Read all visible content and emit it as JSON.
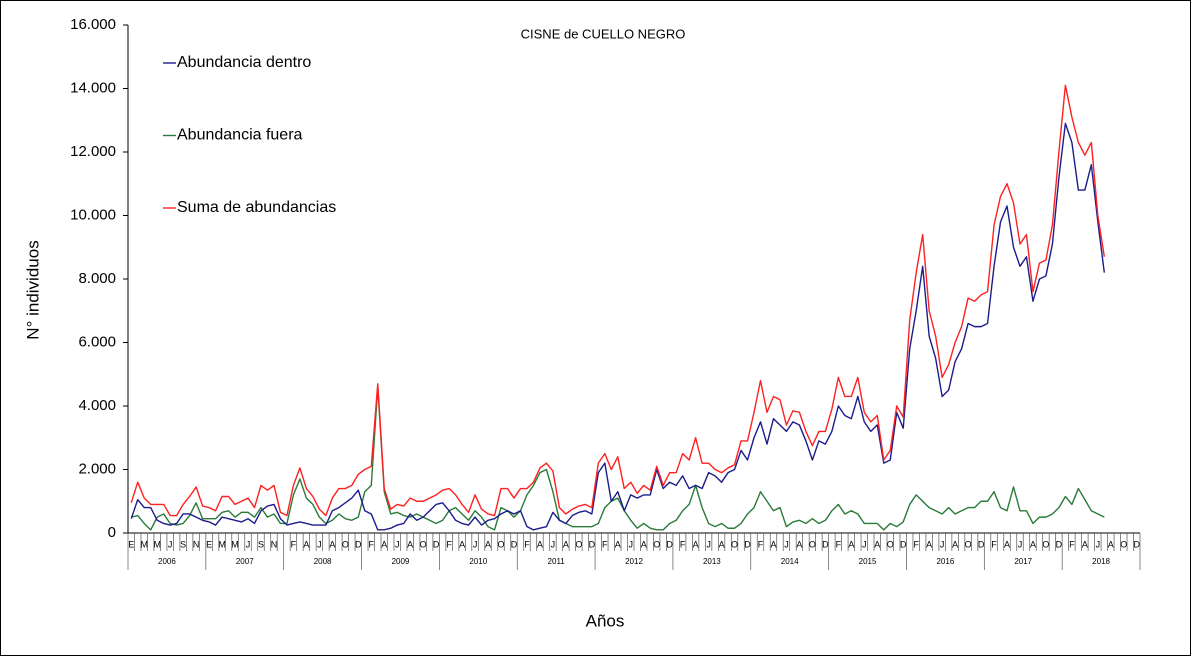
{
  "chart_data": {
    "type": "line",
    "title": "CISNE de CUELLO NEGRO",
    "ylabel": "N° individuos",
    "xlabel": "Años",
    "legend": "upper left",
    "ylim": [
      0,
      16000
    ],
    "yticks": [
      0,
      {
        "value": 2000,
        "label": "2.000"
      },
      {
        "value": 4000,
        "label": "4.000"
      },
      {
        "value": 6000,
        "label": "6.000"
      },
      {
        "value": 8000,
        "label": "8.000"
      },
      {
        "value": 10000,
        "label": "10.000"
      },
      {
        "value": 12000,
        "label": "12.000"
      },
      {
        "value": 14000,
        "label": "14.000"
      },
      {
        "value": 16000,
        "label": "16.000"
      }
    ],
    "x_groups": [
      "2006",
      "2007",
      "2008",
      "2009",
      "2010",
      "2011",
      "2012",
      "2013",
      "2014",
      "2015",
      "2016",
      "2017",
      "2018"
    ],
    "categories": [
      "E",
      null,
      "M",
      null,
      "M",
      null,
      "J",
      null,
      "S",
      null,
      "N",
      null,
      "E",
      null,
      "M",
      null,
      "M",
      null,
      "J",
      null,
      "S",
      null,
      "N",
      null,
      null,
      "F",
      null,
      "A",
      null,
      "J",
      null,
      "A",
      null,
      "O",
      null,
      "D",
      null,
      "F",
      null,
      "A",
      null,
      "J",
      null,
      "A",
      null,
      "O",
      null,
      "D",
      null,
      "F",
      null,
      "A",
      null,
      "J",
      null,
      "A",
      null,
      "O",
      null,
      "D",
      null,
      "F",
      null,
      "A",
      null,
      "J",
      null,
      "A",
      null,
      "O",
      null,
      "D",
      null,
      "F",
      null,
      "A",
      null,
      "J",
      null,
      "A",
      null,
      "O",
      null,
      "D",
      null,
      "F",
      null,
      "A",
      null,
      "J",
      null,
      "A",
      null,
      "O",
      null,
      "D",
      null,
      "F",
      null,
      "A",
      null,
      "J",
      null,
      "A",
      null,
      "O",
      null,
      "D",
      null,
      "F",
      null,
      "A",
      null,
      "J",
      null,
      "A",
      null,
      "O",
      null,
      "D",
      null,
      "F",
      null,
      "A",
      null,
      "J",
      null,
      "A",
      null,
      "O",
      null,
      "D",
      null,
      "F",
      null,
      "A",
      null,
      "J",
      null,
      "A",
      null,
      "O",
      null,
      "D",
      null,
      "F",
      null,
      "A",
      null,
      "J",
      null,
      "A",
      null,
      "O",
      null,
      "D"
    ],
    "series": [
      {
        "name": "Abundancia dentro",
        "color": "#1c1c8c",
        "values": [
          450,
          1050,
          800,
          800,
          400,
          300,
          250,
          300,
          600,
          600,
          500,
          400,
          350,
          250,
          500,
          450,
          400,
          350,
          450,
          300,
          700,
          850,
          900,
          450,
          250,
          300,
          350,
          300,
          250,
          250,
          250,
          700,
          800,
          950,
          1100,
          1350,
          700,
          600,
          100,
          100,
          150,
          250,
          300,
          600,
          400,
          500,
          700,
          900,
          950,
          700,
          400,
          300,
          250,
          500,
          250,
          400,
          450,
          600,
          700,
          600,
          700,
          200,
          100,
          150,
          200,
          650,
          400,
          300,
          550,
          650,
          700,
          600,
          1900,
          2200,
          1000,
          1300,
          700,
          1200,
          1100,
          1200,
          1200,
          2000,
          1400,
          1600,
          1500,
          1800,
          1400,
          1500,
          1400,
          1900,
          1800,
          1600,
          1900,
          2000,
          2600,
          2300,
          3000,
          3500,
          2800,
          3600,
          3400,
          3200,
          3500,
          3400,
          2900,
          2300,
          2900,
          2800,
          3200,
          4000,
          3700,
          3600,
          4300,
          3500,
          3200,
          3400,
          2200,
          2300,
          3800,
          3300,
          5800,
          7000,
          8400,
          6200,
          5500,
          4300,
          4500,
          5400,
          5800,
          6600,
          6500,
          6500,
          6600,
          8400,
          9800,
          10300,
          9000,
          8400,
          8700,
          7300,
          8000,
          8100,
          9100,
          11200,
          12900,
          12300,
          10800,
          10800,
          11600,
          9800,
          8200,
          null,
          null,
          null,
          null,
          null
        ]
      },
      {
        "name": "Abundancia fuera",
        "color": "#2a7a3a",
        "values": [
          500,
          550,
          300,
          100,
          500,
          600,
          300,
          250,
          300,
          550,
          950,
          450,
          450,
          450,
          650,
          700,
          500,
          650,
          650,
          500,
          800,
          500,
          600,
          300,
          300,
          1200,
          1700,
          1100,
          900,
          500,
          300,
          400,
          600,
          450,
          400,
          500,
          1300,
          1500,
          4600,
          1300,
          600,
          650,
          550,
          500,
          600,
          500,
          400,
          300,
          400,
          700,
          800,
          600,
          400,
          700,
          500,
          200,
          100,
          800,
          700,
          500,
          700,
          1200,
          1500,
          1900,
          2000,
          1300,
          400,
          300,
          200,
          200,
          200,
          200,
          300,
          800,
          1000,
          1100,
          700,
          400,
          150,
          300,
          150,
          100,
          100,
          300,
          400,
          700,
          900,
          1500,
          800,
          300,
          200,
          300,
          150,
          150,
          300,
          600,
          800,
          1300,
          1000,
          700,
          800,
          200,
          350,
          400,
          300,
          450,
          300,
          400,
          700,
          900,
          600,
          700,
          600,
          300,
          300,
          300,
          100,
          300,
          200,
          350,
          900,
          1200,
          1000,
          800,
          700,
          600,
          800,
          600,
          700,
          800,
          800,
          1000,
          1000,
          1300,
          800,
          700,
          1450,
          700,
          700,
          300,
          500,
          500,
          600,
          800,
          1150,
          900,
          1400,
          1050,
          700,
          600,
          500,
          null,
          null,
          null,
          null,
          null
        ]
      },
      {
        "name": "Suma de abundancias",
        "color": "#ff2020",
        "values": [
          950,
          1600,
          1100,
          900,
          900,
          900,
          550,
          550,
          900,
          1150,
          1450,
          850,
          800,
          700,
          1150,
          1150,
          900,
          1000,
          1100,
          800,
          1500,
          1350,
          1500,
          650,
          550,
          1500,
          2050,
          1400,
          1150,
          750,
          550,
          1100,
          1400,
          1400,
          1500,
          1850,
          2000,
          2100,
          4700,
          1400,
          750,
          900,
          850,
          1100,
          1000,
          1000,
          1100,
          1200,
          1350,
          1400,
          1200,
          900,
          650,
          1200,
          750,
          600,
          550,
          1400,
          1400,
          1100,
          1400,
          1400,
          1600,
          2050,
          2200,
          1950,
          800,
          600,
          750,
          850,
          900,
          800,
          2200,
          2500,
          2000,
          2400,
          1400,
          1600,
          1250,
          1500,
          1350,
          2100,
          1500,
          1900,
          1900,
          2500,
          2300,
          3000,
          2200,
          2200,
          2000,
          1900,
          2050,
          2150,
          2900,
          2900,
          3800,
          4800,
          3800,
          4300,
          4200,
          3400,
          3850,
          3800,
          3200,
          2750,
          3200,
          3200,
          3900,
          4900,
          4300,
          4300,
          4900,
          3800,
          3500,
          3700,
          2300,
          2600,
          4000,
          3650,
          6700,
          8200,
          9400,
          7000,
          6200,
          4900,
          5300,
          6000,
          6500,
          7400,
          7300,
          7500,
          7600,
          9700,
          10600,
          11000,
          10400,
          9100,
          9400,
          7600,
          8500,
          8600,
          9700,
          12000,
          14100,
          13100,
          12300,
          11900,
          12300,
          10000,
          8700,
          null,
          null,
          null,
          null,
          null
        ]
      }
    ]
  }
}
